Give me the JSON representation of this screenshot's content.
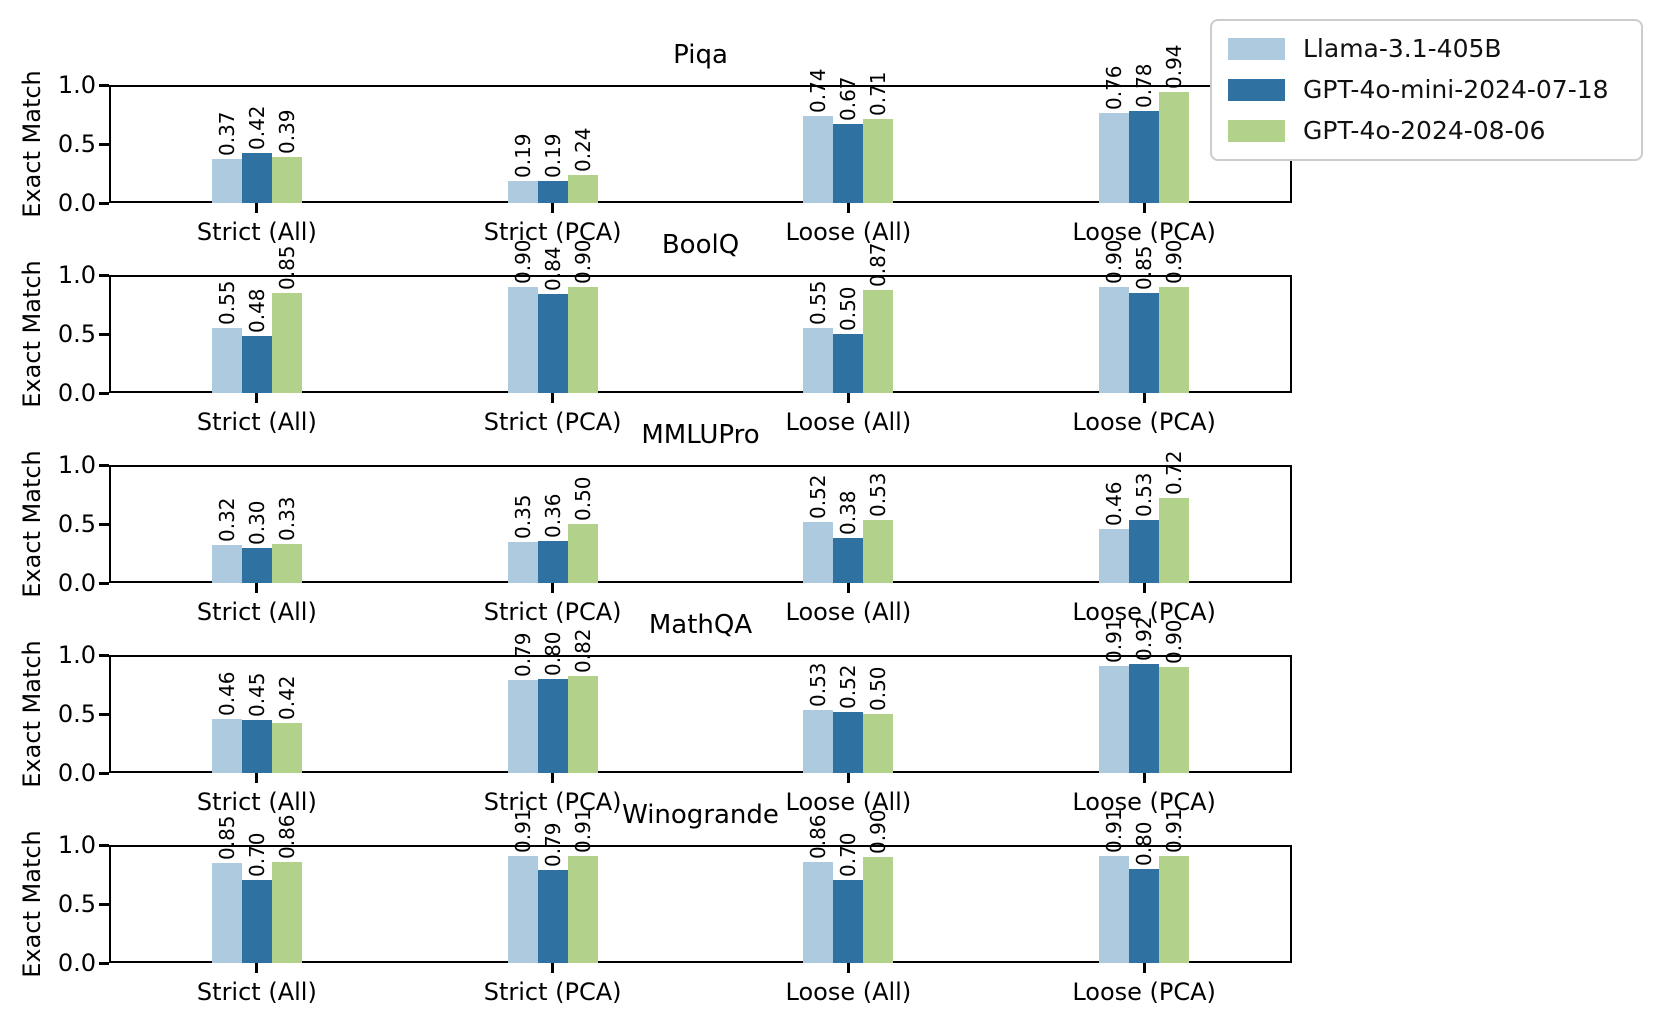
{
  "figure": {
    "background": "#ffffff",
    "spine_color": "#000000",
    "legend_border_color": "#cccccc"
  },
  "chart_data": {
    "type": "bar",
    "categories": [
      "Strict (All)",
      "Strict (PCA)",
      "Loose (All)",
      "Loose (PCA)"
    ],
    "ylabel": "Exact Match",
    "ylim": [
      0.0,
      1.0
    ],
    "yticks": [
      0.0,
      0.5,
      1.0
    ],
    "grid": false,
    "bar_label_format": ".2f",
    "bar_label_rotation": 90,
    "series_names": [
      "Llama-3.1-405B",
      "GPT-4o-mini-2024-07-18",
      "GPT-4o-2024-08-06"
    ],
    "series_colors": [
      "#aecade",
      "#2f71a0",
      "#b2d28c"
    ],
    "legend": {
      "position": "upper right",
      "entries": [
        "Llama-3.1-405B",
        "GPT-4o-mini-2024-07-18",
        "GPT-4o-2024-08-06"
      ]
    },
    "subplots": [
      {
        "title": "Piqa",
        "series": [
          {
            "name": "Llama-3.1-405B",
            "values": [
              0.37,
              0.19,
              0.74,
              0.76
            ]
          },
          {
            "name": "GPT-4o-mini-2024-07-18",
            "values": [
              0.42,
              0.19,
              0.67,
              0.78
            ]
          },
          {
            "name": "GPT-4o-2024-08-06",
            "values": [
              0.39,
              0.24,
              0.71,
              0.94
            ]
          }
        ]
      },
      {
        "title": "BoolQ",
        "series": [
          {
            "name": "Llama-3.1-405B",
            "values": [
              0.55,
              0.9,
              0.55,
              0.9
            ]
          },
          {
            "name": "GPT-4o-mini-2024-07-18",
            "values": [
              0.48,
              0.84,
              0.5,
              0.85
            ]
          },
          {
            "name": "GPT-4o-2024-08-06",
            "values": [
              0.85,
              0.9,
              0.87,
              0.9
            ]
          }
        ]
      },
      {
        "title": "MMLUPro",
        "series": [
          {
            "name": "Llama-3.1-405B",
            "values": [
              0.32,
              0.35,
              0.52,
              0.46
            ]
          },
          {
            "name": "GPT-4o-mini-2024-07-18",
            "values": [
              0.3,
              0.36,
              0.38,
              0.53
            ]
          },
          {
            "name": "GPT-4o-2024-08-06",
            "values": [
              0.33,
              0.5,
              0.53,
              0.72
            ]
          }
        ]
      },
      {
        "title": "MathQA",
        "series": [
          {
            "name": "Llama-3.1-405B",
            "values": [
              0.46,
              0.79,
              0.53,
              0.91
            ]
          },
          {
            "name": "GPT-4o-mini-2024-07-18",
            "values": [
              0.45,
              0.8,
              0.52,
              0.92
            ]
          },
          {
            "name": "GPT-4o-2024-08-06",
            "values": [
              0.42,
              0.82,
              0.5,
              0.9
            ]
          }
        ]
      },
      {
        "title": "Winogrande",
        "series": [
          {
            "name": "Llama-3.1-405B",
            "values": [
              0.85,
              0.91,
              0.86,
              0.91
            ]
          },
          {
            "name": "GPT-4o-mini-2024-07-18",
            "values": [
              0.7,
              0.79,
              0.7,
              0.8
            ]
          },
          {
            "name": "GPT-4o-2024-08-06",
            "values": [
              0.86,
              0.91,
              0.9,
              0.91
            ]
          }
        ]
      }
    ]
  }
}
